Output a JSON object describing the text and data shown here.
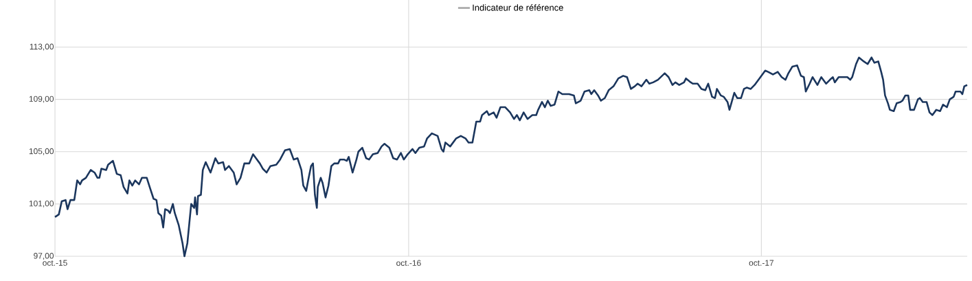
{
  "chart_data": {
    "type": "line",
    "xlim": [
      "2015-10-01",
      "2018-05-02"
    ],
    "ylim": [
      97,
      116.6
    ],
    "xticks": [
      {
        "value": "2015-10-01",
        "label": "oct.-15"
      },
      {
        "value": "2016-10-01",
        "label": "oct.-16"
      },
      {
        "value": "2017-10-01",
        "label": "oct.-17"
      }
    ],
    "yticks": [
      {
        "value": 97,
        "label": "97,00"
      },
      {
        "value": 101,
        "label": "101,00"
      },
      {
        "value": 105,
        "label": "105,00"
      },
      {
        "value": 109,
        "label": "109,00"
      },
      {
        "value": 113,
        "label": "113,00"
      }
    ],
    "grid": true,
    "legend": "top",
    "marker": "none",
    "line_style": "solid",
    "series": [
      {
        "color": "#1b365d",
        "x": [
          "2015-10-01",
          "2015-10-05",
          "2015-10-08",
          "2015-10-12",
          "2015-10-14",
          "2015-10-17",
          "2015-10-21",
          "2015-10-24",
          "2015-10-27",
          "2015-10-29",
          "2015-11-02",
          "2015-11-07",
          "2015-11-11",
          "2015-11-14",
          "2015-11-16",
          "2015-11-18",
          "2015-11-23",
          "2015-11-25",
          "2015-11-30",
          "2015-12-04",
          "2015-12-08",
          "2015-12-11",
          "2015-12-15",
          "2015-12-17",
          "2015-12-20",
          "2015-12-23",
          "2015-12-27",
          "2015-12-30",
          "2016-01-04",
          "2016-01-07",
          "2016-01-11",
          "2016-01-14",
          "2016-01-16",
          "2016-01-19",
          "2016-01-21",
          "2016-01-23",
          "2016-01-26",
          "2016-01-28",
          "2016-01-31",
          "2016-02-02",
          "2016-02-06",
          "2016-02-10",
          "2016-02-12",
          "2016-02-15",
          "2016-02-17",
          "2016-02-19",
          "2016-02-22",
          "2016-02-23",
          "2016-02-25",
          "2016-02-26",
          "2016-02-29",
          "2016-03-02",
          "2016-03-05",
          "2016-03-10",
          "2016-03-15",
          "2016-03-18",
          "2016-03-23",
          "2016-03-25",
          "2016-03-29",
          "2016-04-03",
          "2016-04-06",
          "2016-04-10",
          "2016-04-14",
          "2016-04-19",
          "2016-04-23",
          "2016-04-26",
          "2016-04-30",
          "2016-05-03",
          "2016-05-07",
          "2016-05-11",
          "2016-05-17",
          "2016-05-21",
          "2016-05-26",
          "2016-05-31",
          "2016-06-04",
          "2016-06-08",
          "2016-06-12",
          "2016-06-14",
          "2016-06-17",
          "2016-06-19",
          "2016-06-22",
          "2016-06-24",
          "2016-06-26",
          "2016-06-28",
          "2016-06-29",
          "2016-07-02",
          "2016-07-04",
          "2016-07-07",
          "2016-07-10",
          "2016-07-13",
          "2016-07-16",
          "2016-07-20",
          "2016-07-22",
          "2016-07-26",
          "2016-07-29",
          "2016-07-31",
          "2016-08-04",
          "2016-08-08",
          "2016-08-10",
          "2016-08-14",
          "2016-08-18",
          "2016-08-21",
          "2016-08-25",
          "2016-08-30",
          "2016-09-03",
          "2016-09-06",
          "2016-09-11",
          "2016-09-15",
          "2016-09-19",
          "2016-09-23",
          "2016-09-26",
          "2016-09-30",
          "2016-10-05",
          "2016-10-08",
          "2016-10-12",
          "2016-10-17",
          "2016-10-20",
          "2016-10-25",
          "2016-10-31",
          "2016-11-04",
          "2016-11-06",
          "2016-11-08",
          "2016-11-13",
          "2016-11-19",
          "2016-11-24",
          "2016-11-29",
          "2016-12-02",
          "2016-12-06",
          "2016-12-08",
          "2016-12-10",
          "2016-12-14",
          "2016-12-16",
          "2016-12-21",
          "2016-12-23",
          "2016-12-28",
          "2016-12-31",
          "2017-01-04",
          "2017-01-09",
          "2017-01-14",
          "2017-01-18",
          "2017-01-21",
          "2017-01-24",
          "2017-01-28",
          "2017-02-01",
          "2017-02-06",
          "2017-02-10",
          "2017-02-12",
          "2017-02-16",
          "2017-02-19",
          "2017-02-22",
          "2017-02-25",
          "2017-03-01",
          "2017-03-05",
          "2017-03-09",
          "2017-03-16",
          "2017-03-21",
          "2017-03-23",
          "2017-03-28",
          "2017-04-01",
          "2017-04-06",
          "2017-04-08",
          "2017-04-11",
          "2017-04-15",
          "2017-04-18",
          "2017-04-22",
          "2017-04-26",
          "2017-05-01",
          "2017-05-06",
          "2017-05-11",
          "2017-05-15",
          "2017-05-19",
          "2017-05-23",
          "2017-05-26",
          "2017-05-30",
          "2017-06-04",
          "2017-06-07",
          "2017-06-11",
          "2017-06-16",
          "2017-06-23",
          "2017-06-27",
          "2017-07-01",
          "2017-07-04",
          "2017-07-08",
          "2017-07-13",
          "2017-07-15",
          "2017-07-20",
          "2017-07-22",
          "2017-07-27",
          "2017-07-31",
          "2017-08-04",
          "2017-08-07",
          "2017-08-11",
          "2017-08-14",
          "2017-08-16",
          "2017-08-20",
          "2017-08-23",
          "2017-08-27",
          "2017-08-29",
          "2017-09-03",
          "2017-09-06",
          "2017-09-10",
          "2017-09-13",
          "2017-09-16",
          "2017-09-20",
          "2017-09-24",
          "2017-09-29",
          "2017-10-05",
          "2017-10-08",
          "2017-10-13",
          "2017-10-18",
          "2017-10-22",
          "2017-10-26",
          "2017-10-29",
          "2017-11-02",
          "2017-11-07",
          "2017-11-11",
          "2017-11-14",
          "2017-11-16",
          "2017-11-20",
          "2017-11-23",
          "2017-11-28",
          "2017-12-02",
          "2017-12-07",
          "2017-12-11",
          "2017-12-14",
          "2017-12-16",
          "2017-12-20",
          "2017-12-25",
          "2017-12-29",
          "2018-01-01",
          "2018-01-03",
          "2018-01-07",
          "2018-01-10",
          "2018-01-15",
          "2018-01-19",
          "2018-01-23",
          "2018-01-26",
          "2018-01-30",
          "2018-02-02",
          "2018-02-04",
          "2018-02-06",
          "2018-02-09",
          "2018-02-11",
          "2018-02-15",
          "2018-02-18",
          "2018-02-22",
          "2018-02-24",
          "2018-02-27",
          "2018-03-02",
          "2018-03-04",
          "2018-03-08",
          "2018-03-12",
          "2018-03-14",
          "2018-03-17",
          "2018-03-21",
          "2018-03-24",
          "2018-03-27",
          "2018-03-31",
          "2018-04-04",
          "2018-04-07",
          "2018-04-11",
          "2018-04-14",
          "2018-04-18",
          "2018-04-20",
          "2018-04-25",
          "2018-04-27",
          "2018-04-29",
          "2018-05-02"
        ],
        "values": [
          100.0,
          100.2,
          101.2,
          101.3,
          100.6,
          101.3,
          101.3,
          102.8,
          102.5,
          102.8,
          103.0,
          103.6,
          103.4,
          103.0,
          103.0,
          103.7,
          103.6,
          104.0,
          104.3,
          103.3,
          103.2,
          102.3,
          101.8,
          102.8,
          102.4,
          102.8,
          102.5,
          103.0,
          103.0,
          102.3,
          101.4,
          101.3,
          100.3,
          100.1,
          99.2,
          100.6,
          100.5,
          100.3,
          101.0,
          100.3,
          99.4,
          98.0,
          97.0,
          98.0,
          99.5,
          101.0,
          100.7,
          101.5,
          100.2,
          101.6,
          101.7,
          103.6,
          104.2,
          103.4,
          104.5,
          104.1,
          104.2,
          103.6,
          103.9,
          103.4,
          102.5,
          103.0,
          104.1,
          104.1,
          104.8,
          104.5,
          104.1,
          103.7,
          103.4,
          103.9,
          104.0,
          104.4,
          105.1,
          105.2,
          104.4,
          104.5,
          103.6,
          102.4,
          102.0,
          102.8,
          103.9,
          104.1,
          101.7,
          100.7,
          102.3,
          103.0,
          102.6,
          101.5,
          102.4,
          103.9,
          104.1,
          104.1,
          104.4,
          104.4,
          104.3,
          104.6,
          103.4,
          104.4,
          105.0,
          105.3,
          104.5,
          104.4,
          104.8,
          104.9,
          105.4,
          105.6,
          105.3,
          104.5,
          104.4,
          104.9,
          104.4,
          104.8,
          105.2,
          104.9,
          105.3,
          105.4,
          106.0,
          106.4,
          106.2,
          105.2,
          105.0,
          105.7,
          105.4,
          106.0,
          106.2,
          106.0,
          105.7,
          105.7,
          106.5,
          107.3,
          107.3,
          107.8,
          108.1,
          107.8,
          108.0,
          107.6,
          108.4,
          108.4,
          108.0,
          107.5,
          107.8,
          107.4,
          108.0,
          107.5,
          107.8,
          107.8,
          108.2,
          108.8,
          108.4,
          108.9,
          108.5,
          108.6,
          109.6,
          109.4,
          109.4,
          109.3,
          108.7,
          108.9,
          109.6,
          109.7,
          109.4,
          109.7,
          109.3,
          108.9,
          109.1,
          109.7,
          110.0,
          110.6,
          110.8,
          110.7,
          109.8,
          110.0,
          110.2,
          110.0,
          110.5,
          110.2,
          110.3,
          110.5,
          111.0,
          110.7,
          110.1,
          110.3,
          110.1,
          110.3,
          110.6,
          110.3,
          110.2,
          110.2,
          109.8,
          109.7,
          110.2,
          109.2,
          109.1,
          109.8,
          109.3,
          109.2,
          108.8,
          108.2,
          109.5,
          109.1,
          109.1,
          109.8,
          109.9,
          109.8,
          110.1,
          110.6,
          111.2,
          111.1,
          110.9,
          111.1,
          110.7,
          110.5,
          111.0,
          111.5,
          111.6,
          110.8,
          110.7,
          109.6,
          110.2,
          110.7,
          110.1,
          110.7,
          110.2,
          110.5,
          110.7,
          110.3,
          110.7,
          110.7,
          110.7,
          110.5,
          110.7,
          111.7,
          112.2,
          111.9,
          111.7,
          112.2,
          111.8,
          111.9,
          111.1,
          110.5,
          109.3,
          108.7,
          108.2,
          108.1,
          108.7,
          108.8,
          108.9,
          109.3,
          109.3,
          108.2,
          108.2,
          109.0,
          109.1,
          108.8,
          108.8,
          108.0,
          107.8,
          108.2,
          108.1,
          108.6,
          108.4,
          109.0,
          109.2,
          109.6,
          109.6,
          109.4,
          110.0,
          110.1
        ]
      },
      {
        "name": "Indicateur de référence",
        "color": "#a6a6a6"
      }
    ]
  }
}
